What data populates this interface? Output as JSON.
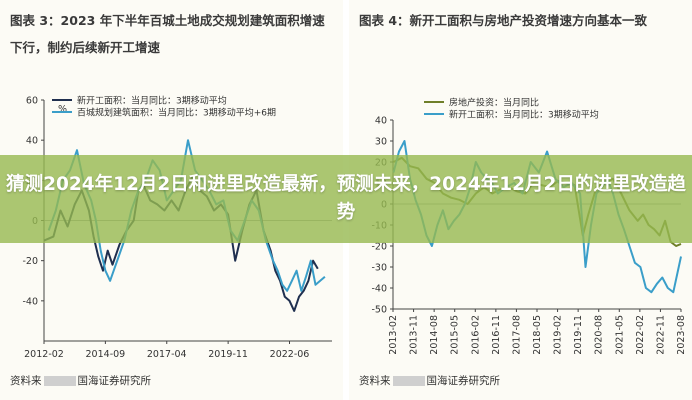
{
  "overlay_title": "猜测2024年12月2日和进里改造最新，预测未来，2024年12月2日的进里改造趋势",
  "figures": [
    {
      "title": "图表 3：2023 年下半年百城土地成交规划建筑面积增速下行，制约后续新开工增速",
      "source": [
        "资料来",
        "国海证券研究所"
      ]
    },
    {
      "title": "图表 4：新开工面积与房地产投资增速方向基本一致",
      "source": [
        "资料来",
        "国海证券研究所"
      ]
    }
  ],
  "chart_data": [
    {
      "type": "line",
      "unit": "%",
      "ylim": [
        -60,
        60
      ],
      "yticks": [
        -40,
        -20,
        0,
        20,
        40,
        60
      ],
      "xlim": [
        2012.1,
        2024.3
      ],
      "xticks": [
        {
          "value": 2012.1,
          "label": "2012-02"
        },
        {
          "value": 2014.7,
          "label": "2014-09"
        },
        {
          "value": 2017.3,
          "label": "2017-04"
        },
        {
          "value": 2019.9,
          "label": "2019-11"
        },
        {
          "value": 2022.5,
          "label": "2022-06"
        }
      ],
      "series": [
        {
          "name": "新开工面积：当月同比：3期移动平均",
          "color": "#1f2f4f",
          "x": [
            2012.1,
            2012.5,
            2012.8,
            2013.1,
            2013.4,
            2013.7,
            2014.0,
            2014.2,
            2014.4,
            2014.6,
            2014.8,
            2015.0,
            2015.3,
            2015.6,
            2015.9,
            2016.1,
            2016.3,
            2016.6,
            2016.9,
            2017.2,
            2017.5,
            2017.8,
            2018.1,
            2018.4,
            2018.7,
            2019.0,
            2019.3,
            2019.6,
            2019.9,
            2020.2,
            2020.5,
            2020.8,
            2021.1,
            2021.4,
            2021.7,
            2021.9,
            2022.1,
            2022.3,
            2022.5,
            2022.7,
            2022.9,
            2023.1,
            2023.3,
            2023.5,
            2023.7
          ],
          "values": [
            -10,
            -8,
            5,
            -3,
            8,
            15,
            5,
            -8,
            -18,
            -25,
            -15,
            -22,
            -12,
            -5,
            0,
            15,
            18,
            10,
            8,
            5,
            10,
            5,
            15,
            22,
            15,
            12,
            5,
            8,
            3,
            -20,
            -5,
            8,
            15,
            -5,
            -15,
            -25,
            -30,
            -38,
            -40,
            -45,
            -38,
            -35,
            -30,
            -20,
            -24
          ]
        },
        {
          "name": "百城规划建筑面积：当月同比：3期移动平均+6期",
          "color": "#3a9ec9",
          "x": [
            2012.3,
            2012.6,
            2012.9,
            2013.2,
            2013.5,
            2013.8,
            2014.1,
            2014.3,
            2014.5,
            2014.7,
            2014.9,
            2015.2,
            2015.5,
            2015.8,
            2016.1,
            2016.4,
            2016.7,
            2017.0,
            2017.3,
            2017.6,
            2017.9,
            2018.2,
            2018.5,
            2018.8,
            2019.1,
            2019.4,
            2019.7,
            2020.0,
            2020.3,
            2020.6,
            2020.9,
            2021.2,
            2021.5,
            2021.8,
            2022.0,
            2022.2,
            2022.4,
            2022.6,
            2022.8,
            2023.0,
            2023.2,
            2023.4,
            2023.6,
            2023.8,
            2024.0
          ],
          "values": [
            -5,
            5,
            20,
            25,
            35,
            18,
            10,
            0,
            -15,
            -25,
            -30,
            -20,
            -10,
            5,
            15,
            20,
            30,
            25,
            10,
            15,
            20,
            40,
            25,
            20,
            15,
            8,
            10,
            -5,
            -10,
            0,
            10,
            5,
            -10,
            -20,
            -25,
            -32,
            -35,
            -30,
            -25,
            -35,
            -28,
            -20,
            -32,
            -30,
            -28
          ]
        }
      ]
    },
    {
      "type": "line",
      "ylim": [
        -50,
        40
      ],
      "yticks": [
        -50,
        -40,
        -30,
        -20,
        -10,
        0,
        10,
        20,
        30,
        40
      ],
      "xlim": [
        2013.08,
        2023.58
      ],
      "xticks": [
        {
          "value": 2013.08,
          "label": "2013-02"
        },
        {
          "value": 2013.83,
          "label": "2013-11"
        },
        {
          "value": 2014.58,
          "label": "2014-08"
        },
        {
          "value": 2015.33,
          "label": "2015-05"
        },
        {
          "value": 2016.08,
          "label": "2016-02"
        },
        {
          "value": 2016.83,
          "label": "2016-11"
        },
        {
          "value": 2017.58,
          "label": "2017-08"
        },
        {
          "value": 2018.33,
          "label": "2018-05"
        },
        {
          "value": 2019.08,
          "label": "2019-02"
        },
        {
          "value": 2019.83,
          "label": "2019-11"
        },
        {
          "value": 2020.58,
          "label": "2020-08"
        },
        {
          "value": 2021.33,
          "label": "2021-05"
        },
        {
          "value": 2022.08,
          "label": "2022-02"
        },
        {
          "value": 2022.83,
          "label": "2022-11"
        },
        {
          "value": 2023.58,
          "label": "2023-08"
        }
      ],
      "series": [
        {
          "name": "房地产投资：当月同比",
          "color": "#6f7f2a",
          "x": [
            2013.1,
            2013.4,
            2013.7,
            2014.0,
            2014.3,
            2014.6,
            2014.9,
            2015.2,
            2015.5,
            2015.8,
            2016.1,
            2016.4,
            2016.7,
            2017.0,
            2017.3,
            2017.6,
            2017.9,
            2018.2,
            2018.5,
            2018.8,
            2019.1,
            2019.4,
            2019.7,
            2020.0,
            2020.2,
            2020.5,
            2020.8,
            2021.1,
            2021.4,
            2021.7,
            2022.0,
            2022.2,
            2022.4,
            2022.6,
            2022.8,
            2023.0,
            2023.2,
            2023.4,
            2023.58
          ],
          "values": [
            20,
            22,
            18,
            17,
            12,
            10,
            5,
            3,
            2,
            0,
            5,
            8,
            5,
            7,
            8,
            6,
            5,
            10,
            9,
            8,
            11,
            10,
            9,
            -15,
            -5,
            8,
            10,
            12,
            5,
            -3,
            -8,
            -5,
            -10,
            -12,
            -15,
            -8,
            -18,
            -20,
            -19
          ]
        },
        {
          "name": "新开工面积：当月同比：3期移动平均",
          "color": "#3a9ec9",
          "x": [
            2013.1,
            2013.3,
            2013.5,
            2013.7,
            2013.9,
            2014.1,
            2014.3,
            2014.5,
            2014.7,
            2014.9,
            2015.1,
            2015.3,
            2015.5,
            2015.7,
            2015.9,
            2016.1,
            2016.3,
            2016.5,
            2016.7,
            2016.9,
            2017.2,
            2017.5,
            2017.8,
            2018.1,
            2018.4,
            2018.7,
            2019.0,
            2019.3,
            2019.6,
            2019.9,
            2020.1,
            2020.3,
            2020.5,
            2020.7,
            2020.9,
            2021.1,
            2021.3,
            2021.5,
            2021.7,
            2021.9,
            2022.1,
            2022.3,
            2022.5,
            2022.7,
            2022.9,
            2023.1,
            2023.3,
            2023.58
          ],
          "values": [
            15,
            25,
            30,
            12,
            2,
            -5,
            -15,
            -20,
            -10,
            -3,
            -12,
            -8,
            -5,
            0,
            8,
            20,
            15,
            12,
            10,
            5,
            8,
            10,
            5,
            20,
            15,
            25,
            12,
            8,
            10,
            5,
            -30,
            -10,
            5,
            8,
            12,
            5,
            -5,
            -12,
            -20,
            -28,
            -30,
            -40,
            -42,
            -38,
            -35,
            -40,
            -42,
            -25
          ]
        }
      ]
    }
  ]
}
